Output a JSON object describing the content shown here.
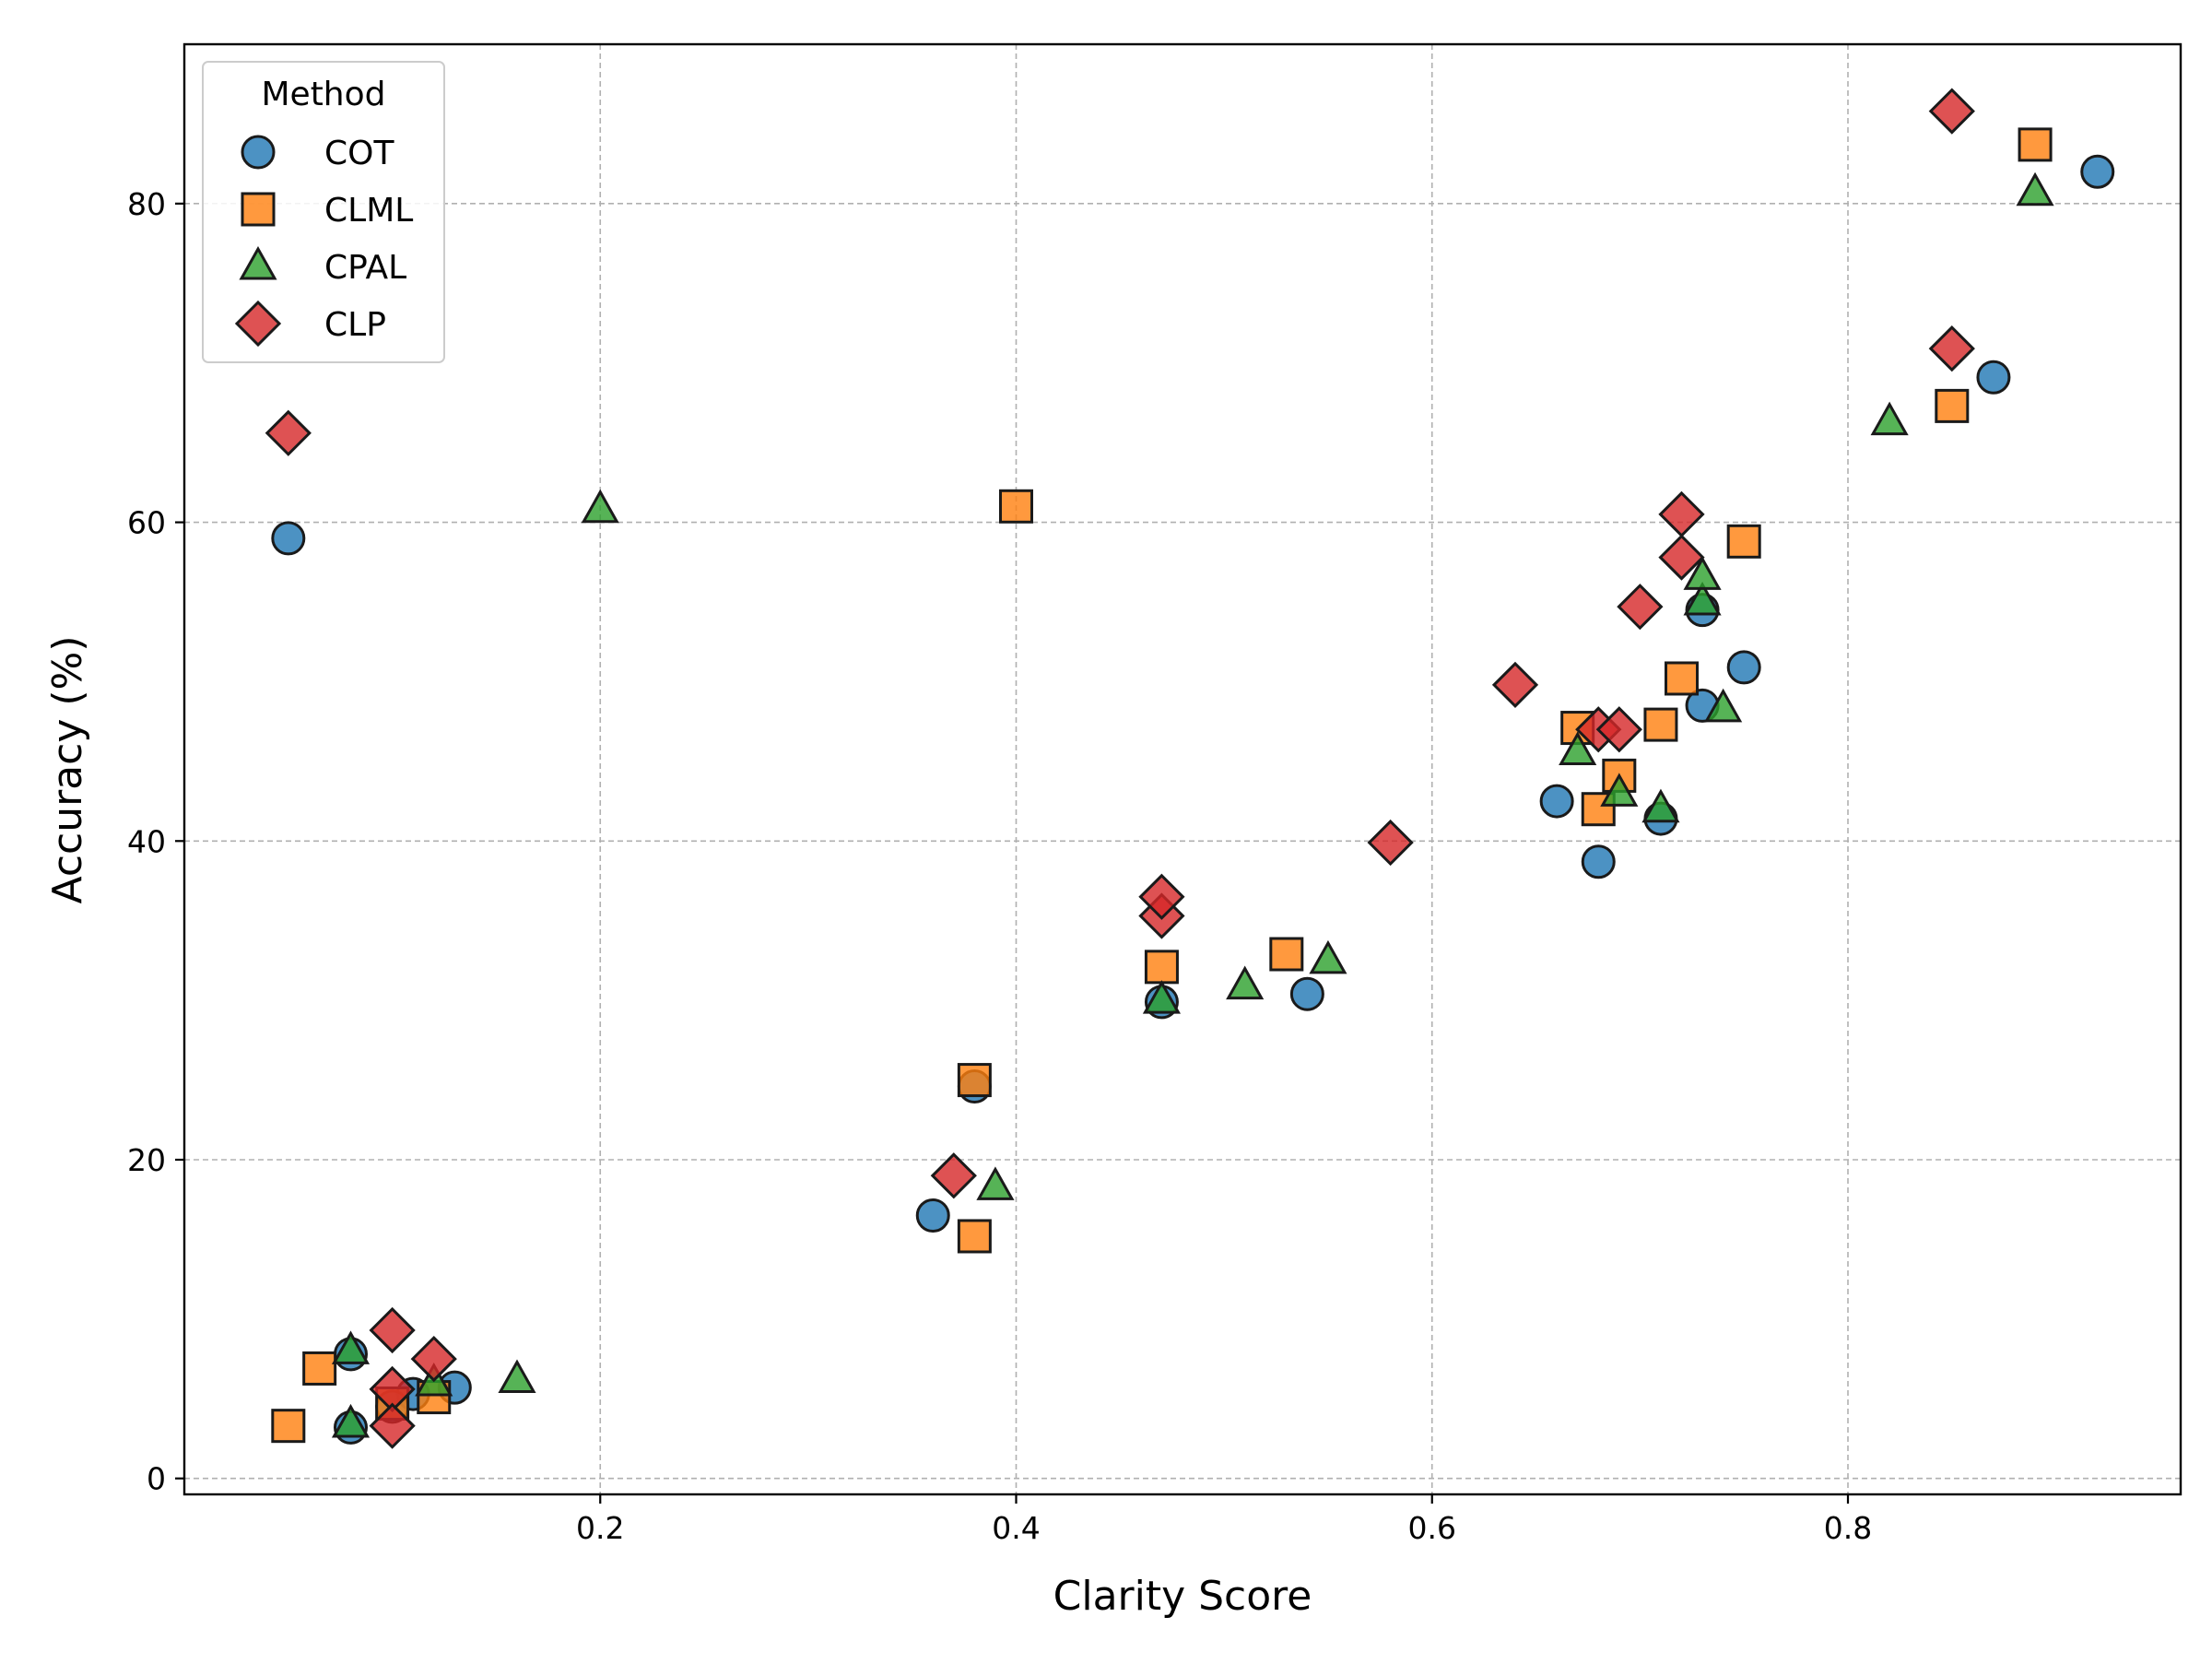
{
  "chart_data": {
    "type": "scatter",
    "title": "",
    "xlabel": "Clarity Score",
    "ylabel": "Accuracy (%)",
    "xlim": [
      0.0,
      0.96
    ],
    "ylim": [
      -1,
      90
    ],
    "xticks": [
      0.2,
      0.4,
      0.6,
      0.8
    ],
    "xtick_labels": [
      "0.2",
      "0.4",
      "0.6",
      "0.8"
    ],
    "yticks": [
      0,
      20,
      40,
      60,
      80
    ],
    "ytick_labels": [
      "0",
      "20",
      "40",
      "60",
      "80"
    ],
    "grid": true,
    "legend": {
      "title": "Method",
      "placement": "top-left"
    },
    "series": [
      {
        "name": "COT",
        "marker": "circle",
        "color": "#1f77b4",
        "points": [
          [
            0.05,
            59.0
          ],
          [
            0.08,
            7.8
          ],
          [
            0.08,
            3.2
          ],
          [
            0.11,
            5.3
          ],
          [
            0.13,
            5.7
          ],
          [
            0.1,
            4.5
          ],
          [
            0.36,
            16.5
          ],
          [
            0.38,
            24.6
          ],
          [
            0.47,
            29.9
          ],
          [
            0.54,
            30.4
          ],
          [
            0.66,
            42.5
          ],
          [
            0.68,
            38.7
          ],
          [
            0.71,
            41.4
          ],
          [
            0.73,
            48.5
          ],
          [
            0.73,
            54.5
          ],
          [
            0.75,
            50.9
          ],
          [
            0.87,
            69.1
          ],
          [
            0.92,
            82.0
          ]
        ]
      },
      {
        "name": "CLML",
        "marker": "square",
        "color": "#ff7f0e",
        "points": [
          [
            0.05,
            3.3
          ],
          [
            0.065,
            6.9
          ],
          [
            0.1,
            4.7
          ],
          [
            0.12,
            5.1
          ],
          [
            0.38,
            15.2
          ],
          [
            0.38,
            25.0
          ],
          [
            0.4,
            61.0
          ],
          [
            0.47,
            32.1
          ],
          [
            0.53,
            32.9
          ],
          [
            0.67,
            47.1
          ],
          [
            0.68,
            42.0
          ],
          [
            0.69,
            44.1
          ],
          [
            0.71,
            47.3
          ],
          [
            0.72,
            50.2
          ],
          [
            0.75,
            58.8
          ],
          [
            0.85,
            67.3
          ],
          [
            0.89,
            83.7
          ]
        ]
      },
      {
        "name": "CPAL",
        "marker": "triangle",
        "color": "#2ca02c",
        "points": [
          [
            0.08,
            8.0
          ],
          [
            0.08,
            3.4
          ],
          [
            0.12,
            6.0
          ],
          [
            0.16,
            6.2
          ],
          [
            0.2,
            60.8
          ],
          [
            0.39,
            18.3
          ],
          [
            0.47,
            30.0
          ],
          [
            0.51,
            30.9
          ],
          [
            0.55,
            32.5
          ],
          [
            0.67,
            45.6
          ],
          [
            0.69,
            43.0
          ],
          [
            0.71,
            42.0
          ],
          [
            0.73,
            55.0
          ],
          [
            0.73,
            56.6
          ],
          [
            0.74,
            48.3
          ],
          [
            0.82,
            66.3
          ],
          [
            0.89,
            80.7
          ]
        ]
      },
      {
        "name": "CLP",
        "marker": "diamond",
        "color": "#d62728",
        "points": [
          [
            0.05,
            65.6
          ],
          [
            0.1,
            9.3
          ],
          [
            0.1,
            5.6
          ],
          [
            0.1,
            3.3
          ],
          [
            0.12,
            7.5
          ],
          [
            0.37,
            19.0
          ],
          [
            0.47,
            35.3
          ],
          [
            0.47,
            36.5
          ],
          [
            0.58,
            39.9
          ],
          [
            0.64,
            49.8
          ],
          [
            0.68,
            47.0
          ],
          [
            0.69,
            47.0
          ],
          [
            0.7,
            54.7
          ],
          [
            0.72,
            57.8
          ],
          [
            0.72,
            60.5
          ],
          [
            0.85,
            70.9
          ],
          [
            0.85,
            85.8
          ]
        ]
      }
    ]
  }
}
